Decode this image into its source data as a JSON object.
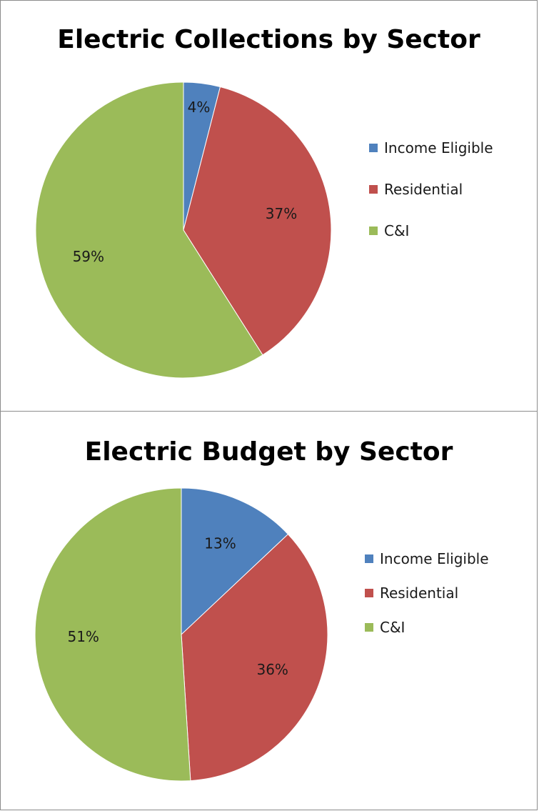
{
  "colors": {
    "income_eligible": "#4f81bd",
    "residential": "#c0504d",
    "c_and_i": "#9bbb59"
  },
  "chart_data": [
    {
      "type": "pie",
      "title": "Electric Collections by Sector",
      "categories": [
        "Income Eligible",
        "Residential",
        "C&I"
      ],
      "values": [
        4,
        37,
        59
      ],
      "data_labels": [
        "4%",
        "37%",
        "59%"
      ],
      "start": "12 o'clock, clockwise",
      "legend": "right"
    },
    {
      "type": "pie",
      "title": "Electric Budget by Sector",
      "categories": [
        "Income Eligible",
        "Residential",
        "C&I"
      ],
      "values": [
        13,
        36,
        51
      ],
      "data_labels": [
        "13%",
        "36%",
        "51%"
      ],
      "start": "12 o'clock, clockwise",
      "legend": "right"
    }
  ]
}
